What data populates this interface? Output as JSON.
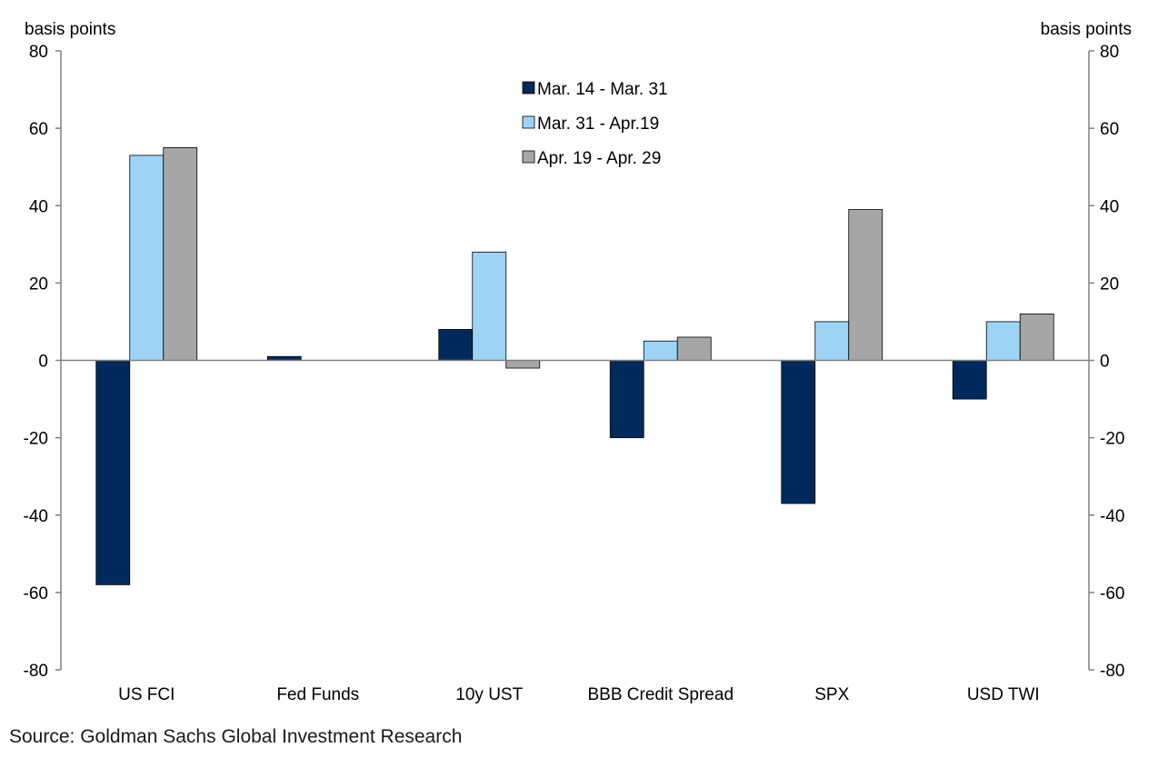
{
  "chart_data": {
    "type": "bar",
    "title": "",
    "xlabel": "",
    "ylabel": "basis points",
    "ylabel_right": "basis points",
    "ylim": [
      -80,
      80
    ],
    "yticks": [
      80,
      60,
      40,
      20,
      0,
      -20,
      -40,
      -60,
      -80
    ],
    "categories": [
      "US FCI",
      "Fed Funds",
      "10y UST",
      "BBB Credit Spread",
      "SPX",
      "USD TWI"
    ],
    "series": [
      {
        "name": "Mar. 14 - Mar. 31",
        "color": "#002a5c",
        "values": [
          -58,
          1,
          8,
          -20,
          -37,
          -10
        ]
      },
      {
        "name": "Mar. 31 - Apr.19",
        "color": "#9dd3f5",
        "values": [
          53,
          0,
          28,
          5,
          10,
          10
        ]
      },
      {
        "name": "Apr. 19 - Apr. 29",
        "color": "#a6a6a6",
        "values": [
          55,
          0,
          -2,
          6,
          39,
          12
        ]
      }
    ],
    "legend_position": "top-center",
    "grid": false,
    "source": "Source: Goldman Sachs Global Investment Research"
  }
}
